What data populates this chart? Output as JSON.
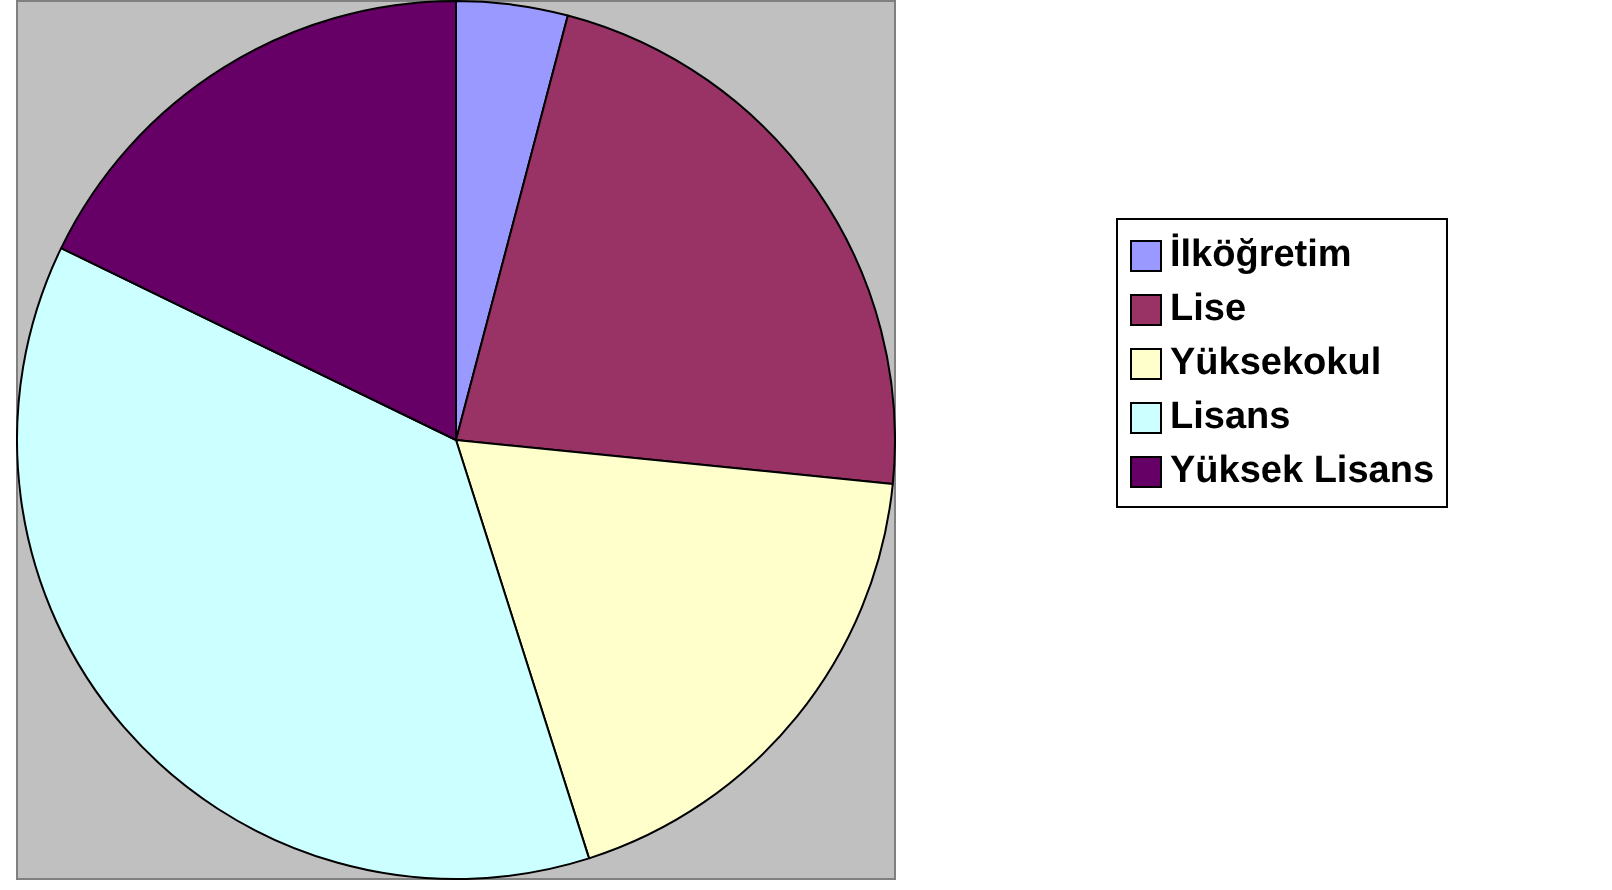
{
  "chart_data": {
    "type": "pie",
    "categories": [
      "İlköğretim",
      "Lise",
      "Yüksekokul",
      "Lisans",
      "Yüksek Lisans"
    ],
    "values": [
      4.1,
      22.5,
      18.5,
      37.1,
      17.8
    ],
    "colors": [
      "#9999ff",
      "#993366",
      "#ffffcc",
      "#ccffff",
      "#660066"
    ],
    "legend": "right"
  }
}
